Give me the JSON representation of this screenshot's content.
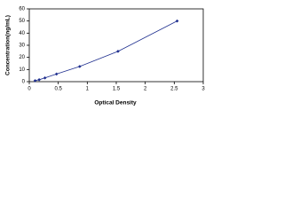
{
  "chart_data": {
    "type": "scatter",
    "x_label": "Optical Density",
    "y_label": "Concentration(ng/mL)",
    "x": [
      0.1,
      0.17,
      0.27,
      0.47,
      0.87,
      1.53,
      2.55
    ],
    "values": [
      0.8,
      1.6,
      3.1,
      6.3,
      12.5,
      25,
      50
    ],
    "color": "#1f2f8f",
    "line_color": "#1f2f8f",
    "xlim": [
      0,
      3
    ],
    "xticks": [
      0,
      0.5,
      1,
      1.5,
      2,
      2.5,
      3
    ],
    "ylim": [
      0,
      60
    ],
    "yticks": [
      0,
      10,
      20,
      30,
      40,
      50,
      60
    ]
  }
}
